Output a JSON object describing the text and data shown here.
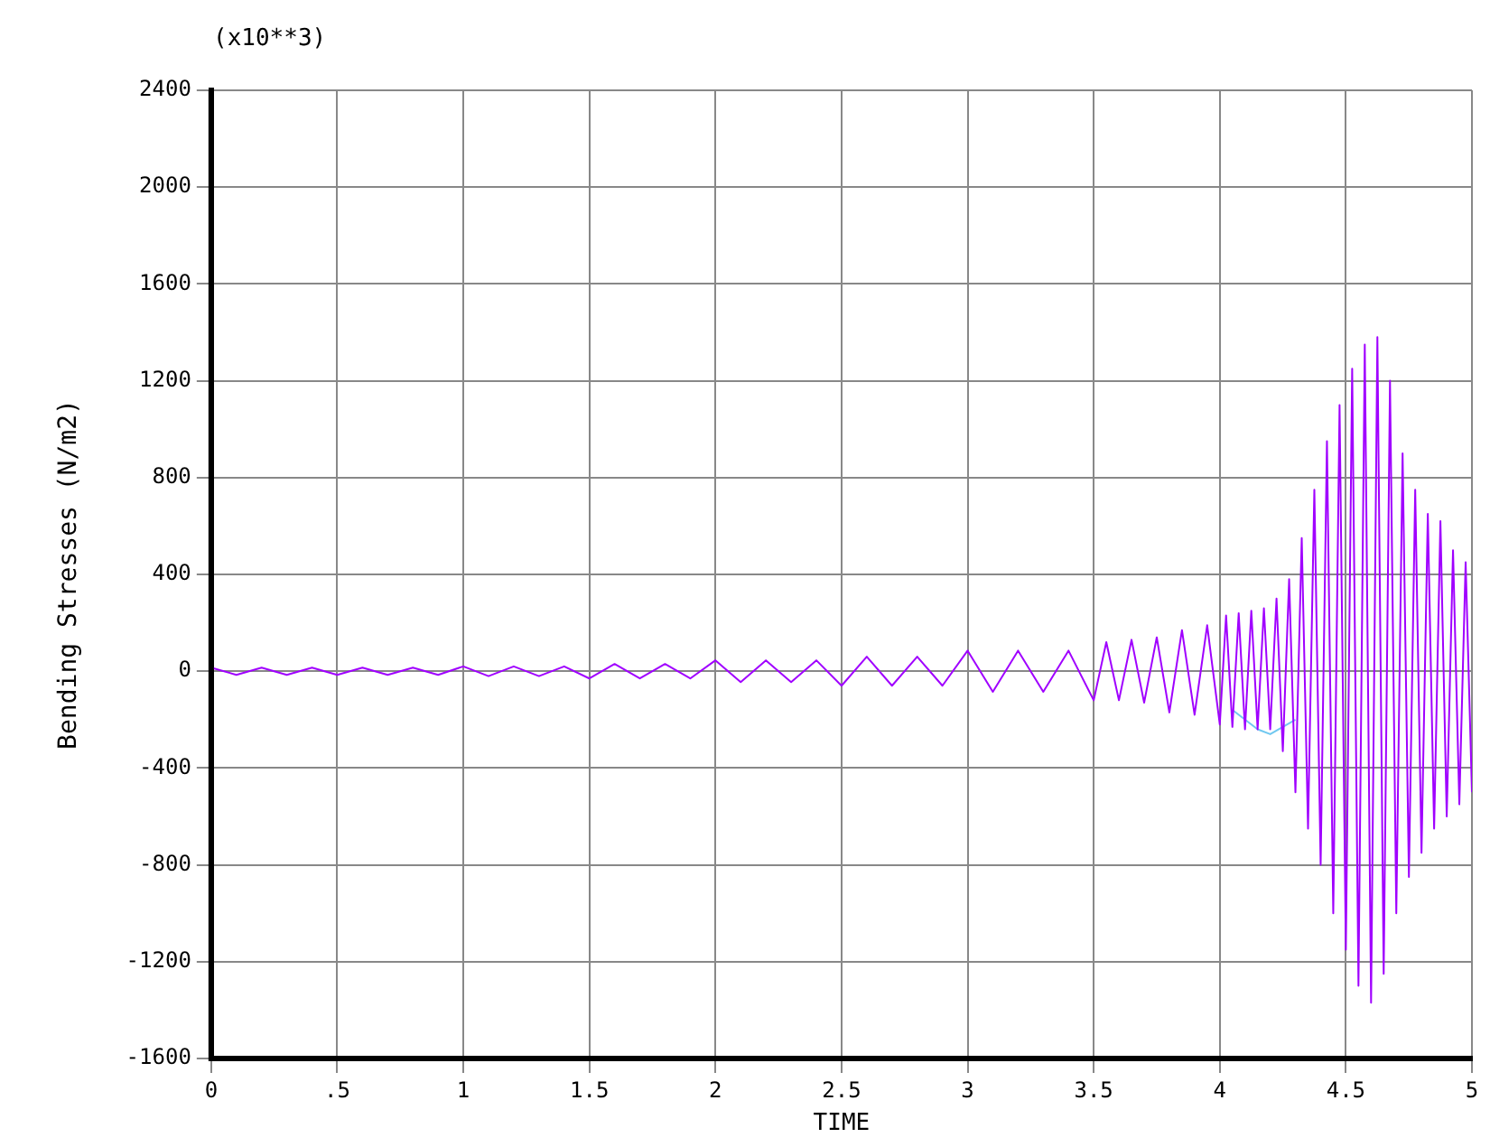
{
  "chart_data": {
    "type": "line",
    "xlabel": "TIME",
    "ylabel": "Bending Stresses (N/m2)",
    "annotations": [
      "(x10**3)"
    ],
    "xlim": [
      0,
      5
    ],
    "xticks": [
      0,
      {
        "value": 0.5,
        "label": ".5"
      },
      1,
      1.5,
      2,
      2.5,
      3,
      3.5,
      4,
      4.5,
      5
    ],
    "ylim": [
      -1600,
      2400
    ],
    "yticks": [
      -1600,
      -1200,
      -800,
      -400,
      0,
      400,
      800,
      1200,
      1600,
      2000,
      2400
    ],
    "grid": true,
    "legend": false,
    "marker": "none",
    "line_style": "solid",
    "series": [
      {
        "color": "#70c8f0",
        "x": [
          4.05,
          4.1,
          4.15,
          4.2,
          4.25,
          4.3
        ],
        "values": [
          -160,
          -200,
          -240,
          -260,
          -230,
          -200
        ]
      },
      {
        "color": "#a000ff",
        "x": [
          0,
          0.1,
          0.2,
          0.3,
          0.4,
          0.5,
          0.6,
          0.7,
          0.8,
          0.9,
          1.0,
          1.1,
          1.2,
          1.3,
          1.4,
          1.5,
          1.6,
          1.7,
          1.8,
          1.9,
          2.0,
          2.1,
          2.2,
          2.3,
          2.4,
          2.5,
          2.6,
          2.7,
          2.8,
          2.9,
          3.0,
          3.1,
          3.2,
          3.3,
          3.4,
          3.5,
          3.55,
          3.6,
          3.65,
          3.7,
          3.75,
          3.8,
          3.85,
          3.9,
          3.95,
          4.0,
          4.025,
          4.05,
          4.075,
          4.1,
          4.125,
          4.15,
          4.175,
          4.2,
          4.225,
          4.25,
          4.275,
          4.3,
          4.325,
          4.35,
          4.375,
          4.4,
          4.425,
          4.45,
          4.475,
          4.5,
          4.525,
          4.55,
          4.575,
          4.6,
          4.625,
          4.65,
          4.675,
          4.7,
          4.725,
          4.75,
          4.775,
          4.8,
          4.825,
          4.85,
          4.875,
          4.9,
          4.925,
          4.95,
          4.975,
          5.0
        ],
        "values": [
          15,
          -15,
          15,
          -15,
          15,
          -15,
          15,
          -15,
          15,
          -15,
          20,
          -20,
          20,
          -20,
          20,
          -30,
          30,
          -30,
          30,
          -30,
          45,
          -45,
          45,
          -45,
          45,
          -60,
          60,
          -60,
          60,
          -60,
          85,
          -85,
          85,
          -85,
          85,
          -120,
          120,
          -120,
          130,
          -130,
          140,
          -170,
          170,
          -180,
          190,
          -220,
          230,
          -230,
          240,
          -240,
          250,
          -240,
          260,
          -240,
          300,
          -330,
          380,
          -500,
          550,
          -650,
          750,
          -800,
          950,
          -1000,
          1100,
          -1150,
          1250,
          -1300,
          1350,
          -1370,
          1380,
          -1250,
          1200,
          -1000,
          900,
          -850,
          750,
          -750,
          650,
          -650,
          620,
          -600,
          500,
          -550,
          450,
          -500
        ]
      }
    ]
  }
}
